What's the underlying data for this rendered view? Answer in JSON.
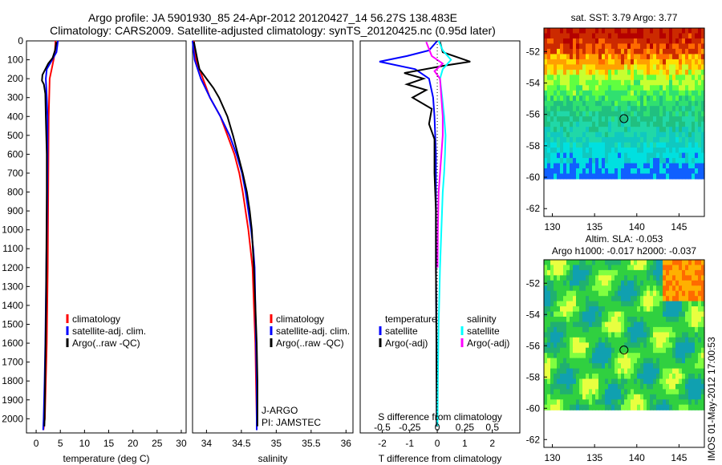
{
  "header": {
    "title_line1": "Argo profile: JA 5901930_85 24-Apr-2012 20120427_14 56.27S 138.483E",
    "title_line2": "Climatology: CARS2009. Satellite-adjusted climatology: synTS_20120425.nc (0.95d later)"
  },
  "stamp": "IMOS 01-May-2012 17:00:53",
  "colors": {
    "climatology": "#ff0000",
    "satellite": "#0000ff",
    "argo": "#000000",
    "sal_satellite": "#00ffff",
    "sal_argo": "#ff00ff"
  },
  "chart_data": [
    {
      "type": "line",
      "xlabel": "temperature (deg C)",
      "ylabel": "",
      "xlim": [
        -2,
        31
      ],
      "ylim": [
        2075,
        0
      ],
      "xticks": [
        0,
        5,
        10,
        15,
        20,
        25,
        30
      ],
      "yticks": [
        0,
        100,
        200,
        300,
        400,
        500,
        600,
        700,
        800,
        900,
        1000,
        1100,
        1200,
        1300,
        1400,
        1500,
        1600,
        1700,
        1800,
        1900,
        2000
      ],
      "legend": [
        "climatology",
        "satellite-adj. clim.",
        "Argo(..raw -QC)"
      ],
      "series": [
        {
          "name": "climatology",
          "color": "#ff0000",
          "x": [
            4.0,
            3.9,
            3.6,
            3.2,
            2.8,
            2.7,
            2.6,
            2.55,
            2.5,
            2.45,
            2.4,
            2.3,
            2.2,
            2.1,
            2.0,
            1.9,
            1.8,
            1.7,
            1.6,
            1.5
          ],
          "y": [
            0,
            50,
            100,
            150,
            200,
            300,
            400,
            600,
            800,
            1000,
            1200,
            1400,
            1600,
            1700,
            1800,
            1900,
            2000,
            2020,
            2040,
            2060
          ]
        },
        {
          "name": "satellite-adj. clim.",
          "color": "#0000ff",
          "x": [
            4.5,
            4.2,
            3.3,
            2.2,
            2.0,
            2.2,
            2.35,
            2.35,
            2.3,
            2.2,
            2.1,
            2.0,
            1.9,
            1.75,
            1.65,
            1.55,
            1.45
          ],
          "y": [
            0,
            60,
            100,
            150,
            200,
            300,
            400,
            600,
            800,
            1000,
            1200,
            1400,
            1600,
            1800,
            1900,
            2000,
            2060
          ]
        },
        {
          "name": "Argo(..raw -QC)",
          "color": "#000000",
          "x": [
            4.2,
            3.9,
            3.4,
            2.5,
            1.3,
            1.2,
            1.6,
            1.9,
            2.0,
            2.1,
            2.2,
            2.2,
            2.15,
            2.1,
            2.05,
            2.0,
            1.95,
            1.9,
            1.85,
            1.8,
            1.75,
            1.7
          ],
          "y": [
            5,
            50,
            90,
            120,
            180,
            210,
            230,
            280,
            400,
            500,
            600,
            800,
            1000,
            1200,
            1400,
            1500,
            1600,
            1700,
            1800,
            1900,
            2000,
            2040
          ]
        }
      ]
    },
    {
      "type": "line",
      "xlabel": "salinity",
      "xlim": [
        33.8,
        36.1
      ],
      "ylim": [
        2075,
        0
      ],
      "xticks": [
        34,
        34.5,
        35,
        35.5,
        36
      ],
      "legend": [
        "climatology",
        "satellite-adj. clim.",
        "Argo(..raw -QC)"
      ],
      "annotations": [
        "J-ARGO",
        "PI: JAMSTEC"
      ],
      "series": [
        {
          "name": "climatology",
          "color": "#ff0000",
          "x": [
            33.82,
            33.85,
            33.95,
            34.05,
            34.2,
            34.3,
            34.4,
            34.47,
            34.52,
            34.56,
            34.6,
            34.63,
            34.66,
            34.68,
            34.7,
            34.71,
            34.72,
            34.72
          ],
          "y": [
            0,
            100,
            200,
            300,
            400,
            500,
            600,
            700,
            800,
            900,
            1000,
            1100,
            1200,
            1400,
            1600,
            1800,
            2000,
            2060
          ]
        },
        {
          "name": "satellite-adj. clim.",
          "color": "#0000ff",
          "x": [
            33.8,
            33.83,
            33.92,
            34.05,
            34.2,
            34.33,
            34.43,
            34.51,
            34.56,
            34.6,
            34.64,
            34.67,
            34.69,
            34.7,
            34.71,
            34.72,
            34.72
          ],
          "y": [
            0,
            100,
            200,
            300,
            400,
            500,
            600,
            700,
            800,
            900,
            1000,
            1100,
            1200,
            1400,
            1600,
            1800,
            2060
          ]
        },
        {
          "name": "Argo(..raw -QC)",
          "color": "#000000",
          "x": [
            33.82,
            33.87,
            33.9,
            34.0,
            34.1,
            34.18,
            34.3,
            34.38,
            34.45,
            34.52,
            34.58,
            34.62,
            34.65,
            34.68,
            34.7,
            34.72,
            34.73,
            34.73
          ],
          "y": [
            5,
            100,
            150,
            200,
            250,
            300,
            400,
            500,
            600,
            700,
            800,
            900,
            1000,
            1200,
            1400,
            1600,
            1800,
            2040
          ]
        }
      ]
    },
    {
      "type": "line",
      "xlabel": "T difference from climatology",
      "xlabel_top": "S difference from climatology",
      "xlim": [
        -2.8,
        3.0
      ],
      "ylim": [
        2075,
        0
      ],
      "xticks": [
        -2,
        -1,
        0,
        1,
        2
      ],
      "xticks_top": [
        "-0.5",
        "-0.25",
        "0",
        "0.25",
        "0.5"
      ],
      "legend_temperature": [
        "temperature",
        "satellite",
        "Argo(-adj)"
      ],
      "legend_salinity": [
        "salinity",
        "satellite",
        "Argo(-adj)"
      ],
      "series": [
        {
          "name": "satellite",
          "color": "#0000ff",
          "x": [
            0.0,
            -0.3,
            -1.1,
            -2.1,
            -0.8,
            -0.3,
            -0.15,
            -0.1,
            -0.05,
            -0.05,
            -0.05,
            -0.05,
            -0.03,
            -0.02,
            -0.02
          ],
          "y": [
            0,
            50,
            80,
            110,
            150,
            200,
            300,
            400,
            600,
            800,
            1000,
            1200,
            1500,
            1800,
            2040
          ]
        },
        {
          "name": "Argo(-adj)",
          "color": "#000000",
          "x": [
            0.1,
            0.2,
            1.2,
            0.3,
            -1.2,
            -0.5,
            -1.1,
            -0.4,
            -0.9,
            -0.2,
            -0.3,
            -0.1,
            -0.1,
            -0.05,
            -0.05,
            -0.03,
            -0.02
          ],
          "y": [
            5,
            60,
            110,
            130,
            170,
            200,
            230,
            260,
            300,
            360,
            440,
            520,
            700,
            900,
            1200,
            1600,
            2040
          ]
        },
        {
          "name": "satellite",
          "color": "#00ffff",
          "x": [
            0.05,
            0.2,
            0.5,
            0.2,
            0.1,
            0.18,
            0.25,
            0.3,
            0.28,
            0.25,
            0.2,
            0.15,
            0.1,
            0.05,
            0.02,
            0.01
          ],
          "y": [
            0,
            50,
            100,
            150,
            200,
            300,
            400,
            500,
            600,
            700,
            800,
            1000,
            1200,
            1500,
            1800,
            2040
          ]
        },
        {
          "name": "Argo(-adj)",
          "color": "#ff00ff",
          "x": [
            -0.4,
            -0.2,
            0.2,
            -0.1,
            0.1,
            0.15,
            0.2,
            0.2,
            0.15,
            0.1,
            0.05,
            0.02,
            0.01
          ],
          "y": [
            5,
            80,
            120,
            160,
            200,
            300,
            400,
            500,
            600,
            700,
            800,
            1000,
            1200
          ]
        }
      ]
    },
    {
      "type": "heatmap",
      "title": "sat. SST: 3.79 Argo: 3.77",
      "xlim": [
        129,
        148
      ],
      "ylim": [
        -62.5,
        -50.5
      ],
      "xticks": [
        130,
        135,
        140,
        145
      ],
      "yticks": [
        -52,
        -54,
        -56,
        -58,
        -60,
        -62
      ],
      "marker": {
        "x": 138.48,
        "y": -56.27
      }
    },
    {
      "type": "heatmap",
      "title": "Altim. SLA: -0.053",
      "subtitle": "Argo h1000: -0.017 h2000: -0.037",
      "xlim": [
        129,
        148
      ],
      "ylim": [
        -62.5,
        -50.5
      ],
      "xticks": [
        130,
        135,
        140,
        145
      ],
      "yticks": [
        -52,
        -54,
        -56,
        -58,
        -60,
        -62
      ],
      "marker": {
        "x": 138.48,
        "y": -56.27
      }
    }
  ]
}
